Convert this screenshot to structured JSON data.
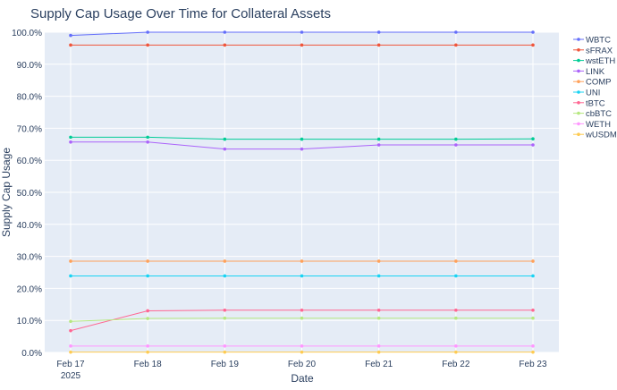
{
  "chart_data": {
    "type": "line",
    "title": "Supply Cap Usage Over Time for Collateral Assets",
    "xlabel": "Date",
    "ylabel": "Supply Cap Usage",
    "x": [
      "Feb 17",
      "Feb 18",
      "Feb 19",
      "Feb 20",
      "Feb 21",
      "Feb 22",
      "Feb 23"
    ],
    "x_tick_labels": [
      "Feb 17",
      "Feb 18",
      "Feb 19",
      "Feb 20",
      "Feb 21",
      "Feb 22",
      "Feb 23"
    ],
    "x_year_label": "2025",
    "ylim": [
      0,
      100
    ],
    "y_ticks": [
      0,
      10,
      20,
      30,
      40,
      50,
      60,
      70,
      80,
      90,
      100
    ],
    "y_tick_labels": [
      "0.0%",
      "10.0%",
      "20.0%",
      "30.0%",
      "40.0%",
      "50.0%",
      "60.0%",
      "70.0%",
      "80.0%",
      "90.0%",
      "100.0%"
    ],
    "grid": true,
    "legend_position": "right",
    "plot_background": "#e5ecf6",
    "series": [
      {
        "name": "WBTC",
        "color": "#636efa",
        "values": [
          99.0,
          100.0,
          100.0,
          100.0,
          100.0,
          100.0,
          100.0
        ]
      },
      {
        "name": "sFRAX",
        "color": "#ef553b",
        "values": [
          96.0,
          96.0,
          96.0,
          96.0,
          96.0,
          96.0,
          96.0
        ]
      },
      {
        "name": "wstETH",
        "color": "#00cc96",
        "values": [
          67.2,
          67.2,
          66.6,
          66.6,
          66.6,
          66.6,
          66.7
        ]
      },
      {
        "name": "LINK",
        "color": "#ab63fa",
        "values": [
          65.7,
          65.7,
          63.5,
          63.5,
          64.8,
          64.8,
          64.8
        ]
      },
      {
        "name": "COMP",
        "color": "#ffa15a",
        "values": [
          28.5,
          28.5,
          28.5,
          28.5,
          28.5,
          28.5,
          28.5
        ]
      },
      {
        "name": "UNI",
        "color": "#19d3f3",
        "values": [
          23.9,
          23.9,
          23.9,
          23.9,
          23.9,
          23.9,
          23.9
        ]
      },
      {
        "name": "tBTC",
        "color": "#ff6692",
        "values": [
          6.8,
          13.0,
          13.2,
          13.2,
          13.2,
          13.2,
          13.2
        ]
      },
      {
        "name": "cbBTC",
        "color": "#b6e880",
        "values": [
          9.7,
          10.6,
          10.7,
          10.7,
          10.7,
          10.7,
          10.7
        ]
      },
      {
        "name": "WETH",
        "color": "#ff97ff",
        "values": [
          2.0,
          2.0,
          2.0,
          2.0,
          2.0,
          2.0,
          2.0
        ]
      },
      {
        "name": "wUSDM",
        "color": "#fecb52",
        "values": [
          0.1,
          0.1,
          0.1,
          0.1,
          0.1,
          0.1,
          0.1
        ]
      }
    ]
  }
}
